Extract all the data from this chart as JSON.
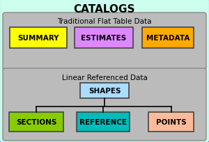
{
  "title": "CATALOGS",
  "background_color": "#ccffee",
  "border_color": "#3333cc",
  "top_box_bg": "#bbbbbb",
  "top_box_label": "Traditional Flat Table Data",
  "bottom_box_bg": "#bbbbbb",
  "bottom_box_label": "Linear Referenced Data",
  "top_items": [
    {
      "label": "SUMMARY",
      "color": "#ffff00"
    },
    {
      "label": "ESTIMATES",
      "color": "#dd88ff"
    },
    {
      "label": "METADATA",
      "color": "#ffaa00"
    }
  ],
  "middle_item": {
    "label": "SHAPES",
    "color": "#aaddff"
  },
  "bottom_items": [
    {
      "label": "SECTIONS",
      "color": "#88cc00"
    },
    {
      "label": "REFERENCE",
      "color": "#00bbbb"
    },
    {
      "label": "POINTS",
      "color": "#ffbb99"
    }
  ],
  "line_color": "#000000",
  "text_color": "#000000",
  "title_fontsize": 11,
  "label_fontsize": 7.5,
  "section_label_fontsize": 7.5
}
